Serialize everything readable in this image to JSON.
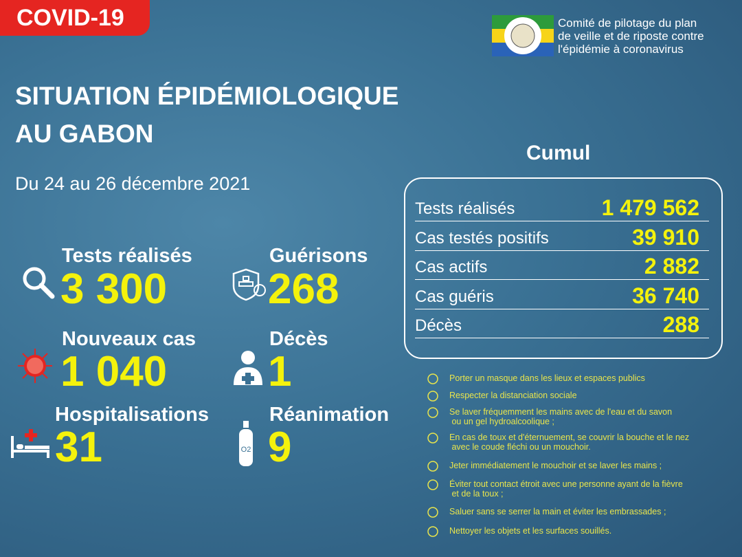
{
  "badge": "COVID-19",
  "org": {
    "lines": [
      "Comité de pilotage du plan",
      "de veille et de riposte contre",
      "l'épidémie à coronavirus"
    ]
  },
  "title": {
    "lines": [
      "SITUATION ÉPIDÉMIOLOGIQUE",
      "AU GABON"
    ]
  },
  "period": "Du 24 au 26 décembre 2021",
  "stats": [
    {
      "label": "Tests réalisés",
      "value": "3 300"
    },
    {
      "label": "Guérisons",
      "value": "268"
    },
    {
      "label": "Nouveaux cas",
      "value": "1 040"
    },
    {
      "label": "Décès",
      "value": "1"
    },
    {
      "label": "Hospitalisations",
      "value": "31"
    },
    {
      "label": "Réanimation",
      "value": "9"
    }
  ],
  "cumul": {
    "title": "Cumul",
    "rows": [
      {
        "label": "Tests réalisés",
        "value": "1 479 562"
      },
      {
        "label": "Cas testés positifs",
        "value": "39 910"
      },
      {
        "label": "Cas actifs",
        "value": "2 882"
      },
      {
        "label": "Cas guéris",
        "value": "36 740"
      },
      {
        "label": "Décès",
        "value": "288"
      }
    ]
  },
  "advice": [
    [
      "Porter un masque dans les lieux et espaces publics"
    ],
    [
      "Respecter la distanciation sociale"
    ],
    [
      "Se laver fréquemment les mains avec de l'eau et du savon",
      " ou un gel hydroalcoolique ;"
    ],
    [
      "En cas de toux et d'éternuement, se couvrir la bouche et le nez",
      " avec le coude fléchi ou un mouchoir."
    ],
    [
      "Jeter immédiatement le mouchoir et se laver les mains ;"
    ],
    [
      "Éviter tout contact étroit avec une personne ayant de la fièvre",
      " et de la toux ;"
    ],
    [
      "Saluer sans se serrer la main et éviter les embrassades ;"
    ],
    [
      "Nettoyer les objets et les surfaces souillés."
    ]
  ]
}
